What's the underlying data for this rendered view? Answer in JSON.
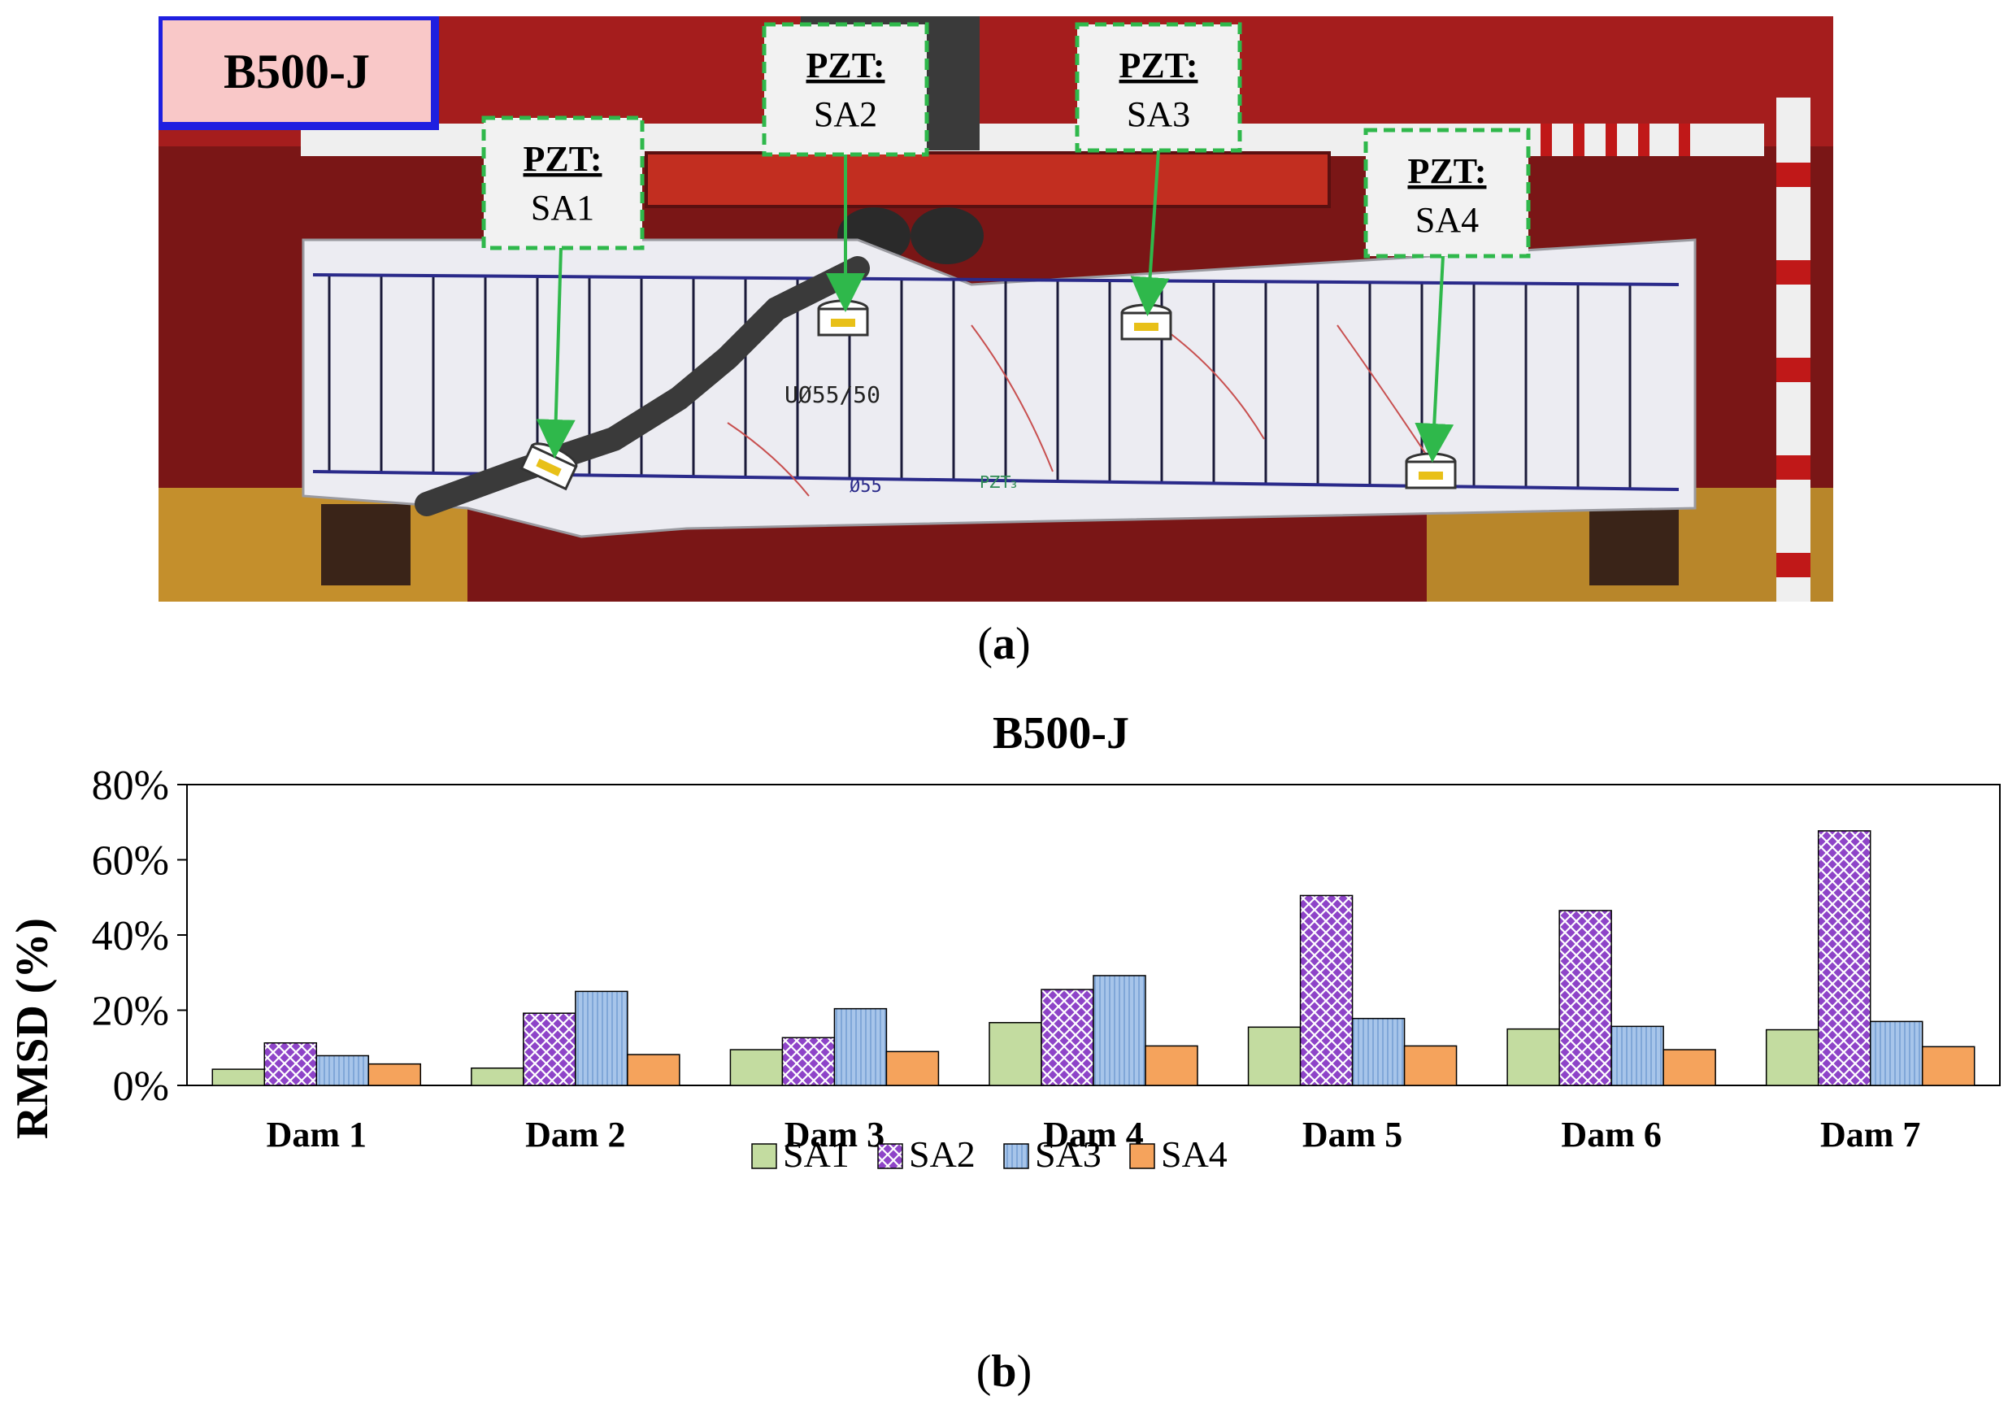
{
  "figure": {
    "label_a": "a",
    "label_b": "b"
  },
  "photo": {
    "specimen_label": "B500-J",
    "sensors": [
      {
        "title": "PZT:",
        "name": "SA1"
      },
      {
        "title": "PZT:",
        "name": "SA2"
      },
      {
        "title": "PZT:",
        "name": "SA3"
      },
      {
        "title": "PZT:",
        "name": "SA4"
      }
    ],
    "handwriting": [
      "UØ55/50",
      "Ø55",
      "PZT₃"
    ]
  },
  "colors": {
    "SA1": "#c3dca0",
    "SA2": "#8e44c8",
    "SA3": "#a7c5ea",
    "SA4": "#f5a35c",
    "label_box_border": "#1f1fe0",
    "label_box_fill": "#f9c8c8",
    "callout_border": "#2fb84b"
  },
  "chart_data": {
    "type": "bar",
    "title": "B500-J",
    "xlabel": "",
    "ylabel": "RMSD (%)",
    "ylim": [
      0,
      80
    ],
    "yticks": [
      "0%",
      "20%",
      "40%",
      "60%",
      "80%"
    ],
    "categories": [
      "Dam 1",
      "Dam 2",
      "Dam 3",
      "Dam 4",
      "Dam 5",
      "Dam 6",
      "Dam 7"
    ],
    "series": [
      {
        "name": "SA1",
        "values": [
          4.3,
          4.6,
          9.5,
          16.7,
          15.5,
          15.0,
          14.8
        ]
      },
      {
        "name": "SA2",
        "values": [
          11.3,
          19.2,
          12.7,
          25.5,
          50.5,
          46.5,
          67.7
        ]
      },
      {
        "name": "SA3",
        "values": [
          7.9,
          25.0,
          20.4,
          29.2,
          17.8,
          15.7,
          17.0
        ]
      },
      {
        "name": "SA4",
        "values": [
          5.7,
          8.2,
          9.0,
          10.5,
          10.5,
          9.5,
          10.3
        ]
      }
    ],
    "legend_position": "bottom-center",
    "grid": false
  }
}
